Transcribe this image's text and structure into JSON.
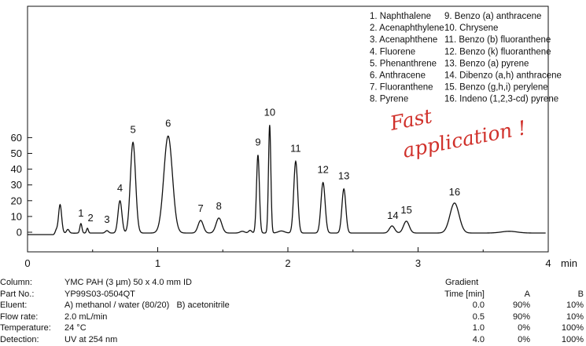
{
  "chart_data": {
    "type": "line",
    "title": "",
    "xlabel": "min",
    "ylabel": "",
    "xlim": [
      0,
      4
    ],
    "ylim": [
      -5,
      70
    ],
    "x_ticks": [
      "0",
      "1",
      "2",
      "3",
      "4"
    ],
    "y_ticks": [
      "0",
      "10",
      "20",
      "30",
      "40",
      "50",
      "60"
    ],
    "baseline": -1.5,
    "grid": false,
    "peaks": [
      {
        "label": "",
        "x": 0.25,
        "y": 17.5
      },
      {
        "label": "1",
        "x": 0.41,
        "y": 5.5
      },
      {
        "label": "2",
        "x": 0.46,
        "y": 2.5
      },
      {
        "label": "3",
        "x": 0.61,
        "y": 1.0
      },
      {
        "label": "4",
        "x": 0.71,
        "y": 20.0
      },
      {
        "label": "5",
        "x": 0.81,
        "y": 57.0
      },
      {
        "label": "6",
        "x": 1.08,
        "y": 61.0
      },
      {
        "label": "7",
        "x": 1.33,
        "y": 7.5
      },
      {
        "label": "8",
        "x": 1.47,
        "y": 9.0
      },
      {
        "label": "9",
        "x": 1.77,
        "y": 49.0
      },
      {
        "label": "10",
        "x": 1.86,
        "y": 68.0
      },
      {
        "label": "11",
        "x": 2.06,
        "y": 45.0
      },
      {
        "label": "12",
        "x": 2.27,
        "y": 31.5
      },
      {
        "label": "13",
        "x": 2.43,
        "y": 27.5
      },
      {
        "label": "14",
        "x": 2.8,
        "y": 4.0
      },
      {
        "label": "15",
        "x": 2.91,
        "y": 7.0
      },
      {
        "label": "16",
        "x": 3.28,
        "y": 18.5
      }
    ],
    "legend": [
      "1.  Naphthalene",
      "2.  Acenaphthylene",
      "3.  Acenaphthene",
      "4.  Fluorene",
      "5.  Phenanthrene",
      "6.  Anthracene",
      "7.  Fluoranthene",
      "8.  Pyrene",
      "9.  Benzo (a) anthracene",
      "10. Chrysene",
      "11. Benzo (b) fluoranthene",
      "12. Benzo (k) fluoranthene",
      "13. Benzo (a) pyrene",
      "14. Dibenzo (a,h) anthracene",
      "15. Benzo (g,h,i) perylene",
      "16. Indeno (1,2,3-cd) pyrene"
    ],
    "annotation": [
      "Fast",
      "application !"
    ],
    "line_color": "#111111",
    "annotation_color": "#d0302a"
  },
  "info": [
    {
      "key": "Column:",
      "value": "YMC PAH (3 µm) 50 x 4.0 mm ID"
    },
    {
      "key": "Part No.:",
      "value": "YP99S03-0504QT"
    },
    {
      "key": "Eluent:",
      "value": "A) methanol / water (80/20)   B) acetonitrile"
    },
    {
      "key": "Flow rate:",
      "value": "2.0 mL/min"
    },
    {
      "key": "Temperature:",
      "value": "24 °C"
    },
    {
      "key": "Detection:",
      "value": "UV at 254 nm"
    }
  ],
  "gradient": {
    "title": "Gradient",
    "headers": [
      "Time [min]",
      "A",
      "B"
    ],
    "rows": [
      [
        "0.0",
        "90%",
        "10%"
      ],
      [
        "0.5",
        "90%",
        "10%"
      ],
      [
        "1.0",
        "0%",
        "100%"
      ],
      [
        "4.0",
        "0%",
        "100%"
      ]
    ]
  }
}
